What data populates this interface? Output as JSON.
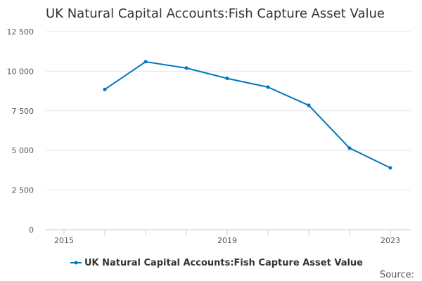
{
  "chart_data": {
    "type": "line",
    "title": "UK Natural Capital Accounts:Fish Capture Asset Value",
    "xlabel": "",
    "ylabel": "",
    "x": [
      2016,
      2017,
      2018,
      2019,
      2020,
      2021,
      2022,
      2023
    ],
    "x_ticks_all": [
      2015,
      2016,
      2017,
      2018,
      2019,
      2020,
      2021,
      2022,
      2023
    ],
    "x_tick_labels": [
      "2015",
      "2019",
      "2023"
    ],
    "xlim": [
      2015,
      2023
    ],
    "y_ticks": [
      0,
      2500,
      5000,
      7500,
      10000,
      12500
    ],
    "y_tick_labels": [
      "0",
      "2 500",
      "5 000",
      "7 500",
      "10 000",
      "12 500"
    ],
    "ylim": [
      0,
      12500
    ],
    "grid": true,
    "legend_position": "bottom",
    "series": [
      {
        "name": "UK Natural Capital Accounts:Fish Capture Asset Value",
        "color": "#0076c0",
        "values": [
          8850,
          10600,
          10200,
          9550,
          9000,
          7850,
          5150,
          3900
        ]
      }
    ]
  },
  "source_label": "Source:"
}
